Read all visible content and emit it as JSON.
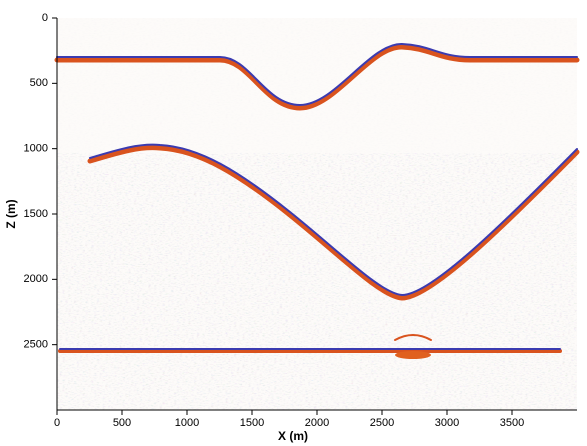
{
  "chart_data": {
    "type": "image",
    "x_label": "X (m)",
    "y_label": "Z (m)",
    "xlim": [
      0,
      4000
    ],
    "ylim": [
      0,
      3000
    ],
    "xticks": [
      0,
      500,
      1000,
      1500,
      2000,
      2500,
      3000,
      3500
    ],
    "yticks": [
      0,
      500,
      1000,
      1500,
      2000,
      2500
    ],
    "y_inverted": true
  }
}
